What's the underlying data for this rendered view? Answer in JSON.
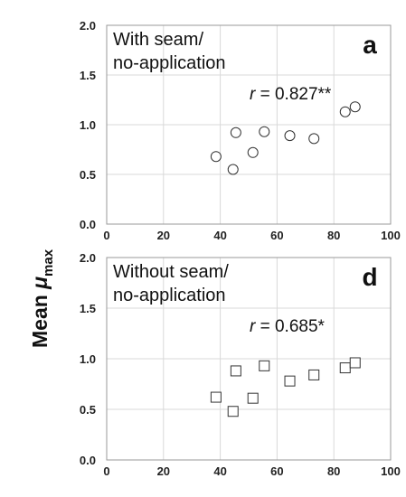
{
  "y_axis_label": {
    "main": "Mean ",
    "symbol": "μ",
    "subscript": "max"
  },
  "chart_data": [
    {
      "type": "scatter",
      "panel_letter": "a",
      "annotation_lines": [
        "With seam/",
        "no-application"
      ],
      "correlation": {
        "r_symbol": "r",
        "text": " = 0.827**"
      },
      "marker": "circle",
      "xlim": [
        0,
        100
      ],
      "ylim": [
        0,
        2.0
      ],
      "xticks": [
        "0",
        "20",
        "40",
        "60",
        "80",
        "100"
      ],
      "yticks": [
        "0.0",
        "0.5",
        "1.0",
        "1.5",
        "2.0"
      ],
      "grid": true,
      "points": [
        {
          "x": 38.5,
          "y": 0.68
        },
        {
          "x": 44.5,
          "y": 0.55
        },
        {
          "x": 45.5,
          "y": 0.92
        },
        {
          "x": 51.5,
          "y": 0.72
        },
        {
          "x": 55.5,
          "y": 0.93
        },
        {
          "x": 64.5,
          "y": 0.89
        },
        {
          "x": 73.0,
          "y": 0.86
        },
        {
          "x": 84.0,
          "y": 1.13
        },
        {
          "x": 87.5,
          "y": 1.18
        }
      ]
    },
    {
      "type": "scatter",
      "panel_letter": "d",
      "annotation_lines": [
        "Without seam/",
        "no-application"
      ],
      "correlation": {
        "r_symbol": "r",
        "text": " = 0.685*"
      },
      "marker": "square",
      "xlim": [
        0,
        100
      ],
      "ylim": [
        0,
        2.0
      ],
      "xticks": [
        "0",
        "20",
        "40",
        "60",
        "80",
        "100"
      ],
      "yticks": [
        "0.0",
        "0.5",
        "1.0",
        "1.5",
        "2.0"
      ],
      "grid": true,
      "points": [
        {
          "x": 38.5,
          "y": 0.62
        },
        {
          "x": 44.5,
          "y": 0.48
        },
        {
          "x": 45.5,
          "y": 0.88
        },
        {
          "x": 51.5,
          "y": 0.61
        },
        {
          "x": 55.5,
          "y": 0.93
        },
        {
          "x": 64.5,
          "y": 0.78
        },
        {
          "x": 73.0,
          "y": 0.84
        },
        {
          "x": 84.0,
          "y": 0.91
        },
        {
          "x": 87.5,
          "y": 0.96
        }
      ]
    }
  ]
}
